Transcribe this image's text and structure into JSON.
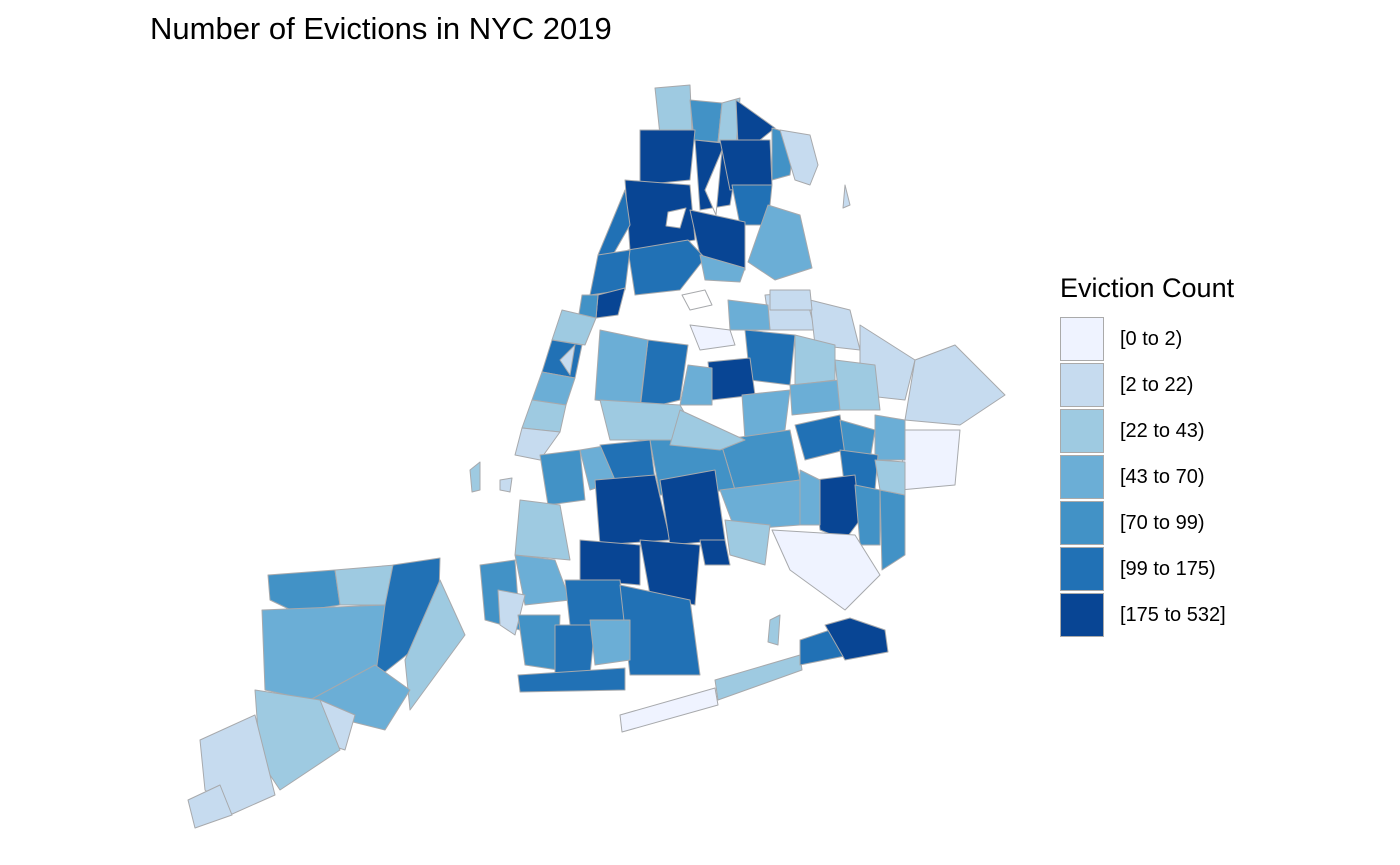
{
  "title": "Number of Evictions in NYC 2019",
  "legend": {
    "title": "Eviction Count",
    "items": [
      {
        "label": "[0 to 2)",
        "color": "#eff3ff"
      },
      {
        "label": "[2 to 22)",
        "color": "#c6dbef"
      },
      {
        "label": "[22 to 43)",
        "color": "#9ecae1"
      },
      {
        "label": "[43 to 70)",
        "color": "#6baed6"
      },
      {
        "label": "[70 to 99)",
        "color": "#4292c6"
      },
      {
        "label": "[99 to 175)",
        "color": "#2171b5"
      },
      {
        "label": "[175 to 532]",
        "color": "#084594"
      }
    ]
  }
}
